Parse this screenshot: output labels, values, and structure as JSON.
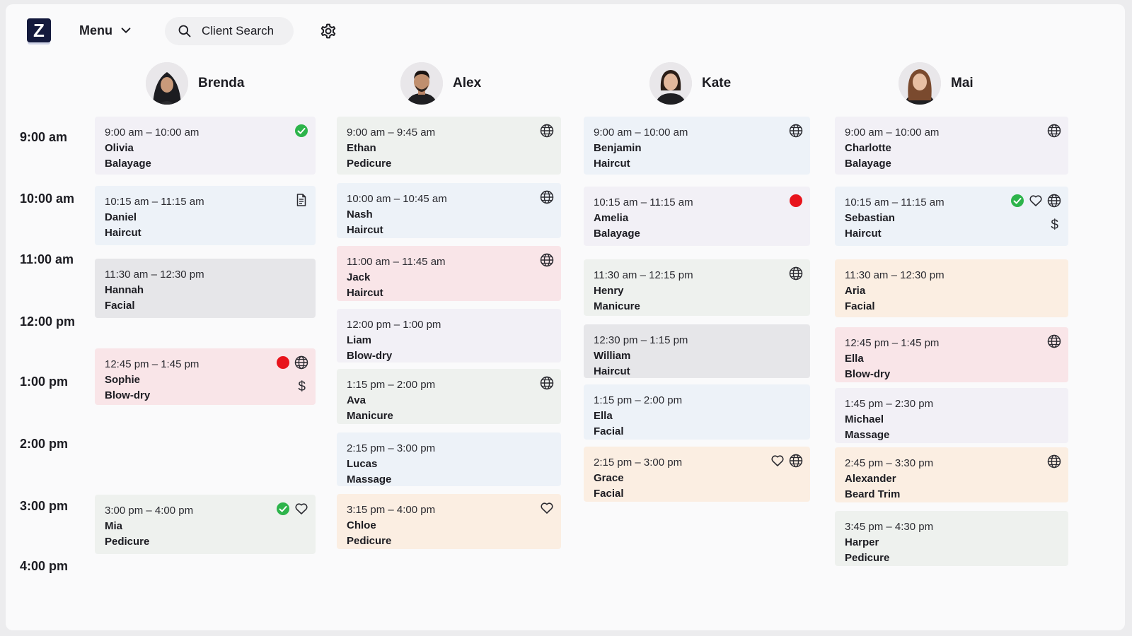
{
  "app": {
    "logo_letter": "Z"
  },
  "toolbar": {
    "menu_label": "Menu",
    "search_placeholder": "Client Search"
  },
  "icons": {
    "menu_chevron": "chevron-down-icon",
    "search": "search-icon",
    "settings": "gear-icon",
    "confirmed": "check-circle-icon",
    "online": "globe-icon",
    "notes": "document-icon",
    "alert": "red-dot-icon",
    "favorite": "heart-icon",
    "paid": "dollar-icon"
  },
  "colors": {
    "confirmed_green": "#2db44b",
    "alert_red": "#e8141c",
    "logo_navy": "#141a3d"
  },
  "times": [
    "9:00 am",
    "10:00 am",
    "11:00 am",
    "12:00 pm",
    "1:00 pm",
    "2:00 pm",
    "3:00 pm",
    "4:00 pm"
  ],
  "staff": [
    {
      "name": "Brenda",
      "appointments": [
        {
          "time": "9:00 am – 10:00 am",
          "client": "Olivia",
          "service": "Balayage"
        },
        {
          "time": "10:15 am – 11:15 am",
          "client": "Daniel",
          "service": "Haircut"
        },
        {
          "time": "11:30 am – 12:30 pm",
          "client": "Hannah",
          "service": "Facial"
        },
        {
          "time": "12:45 pm – 1:45 pm",
          "client": "Sophie",
          "service": "Blow-dry",
          "dollar": "$"
        },
        {
          "time": "3:00 pm – 4:00 pm",
          "client": "Mia",
          "service": "Pedicure"
        }
      ]
    },
    {
      "name": "Alex",
      "appointments": [
        {
          "time": "9:00 am – 9:45 am",
          "client": "Ethan",
          "service": "Pedicure"
        },
        {
          "time": "10:00 am – 10:45 am",
          "client": "Nash",
          "service": "Haircut"
        },
        {
          "time": "11:00 am – 11:45 am",
          "client": "Jack",
          "service": "Haircut"
        },
        {
          "time": "12:00 pm – 1:00 pm",
          "client": "Liam",
          "service": "Blow-dry"
        },
        {
          "time": "1:15 pm – 2:00 pm",
          "client": "Ava",
          "service": "Manicure"
        },
        {
          "time": "2:15 pm – 3:00 pm",
          "client": "Lucas",
          "service": "Massage"
        },
        {
          "time": "3:15 pm – 4:00 pm",
          "client": "Chloe",
          "service": "Pedicure"
        }
      ]
    },
    {
      "name": "Kate",
      "appointments": [
        {
          "time": "9:00 am – 10:00 am",
          "client": "Benjamin",
          "service": "Haircut"
        },
        {
          "time": "10:15 am – 11:15 am",
          "client": "Amelia",
          "service": "Balayage"
        },
        {
          "time": "11:30 am – 12:15 pm",
          "client": "Henry",
          "service": "Manicure"
        },
        {
          "time": "12:30 pm – 1:15 pm",
          "client": "William",
          "service": "Haircut"
        },
        {
          "time": "1:15 pm – 2:00 pm",
          "client": "Ella",
          "service": "Facial"
        },
        {
          "time": "2:15 pm – 3:00 pm",
          "client": "Grace",
          "service": "Facial"
        }
      ]
    },
    {
      "name": "Mai",
      "appointments": [
        {
          "time": "9:00 am – 10:00 am",
          "client": "Charlotte",
          "service": "Balayage"
        },
        {
          "time": "10:15 am – 11:15 am",
          "client": "Sebastian",
          "service": "Haircut",
          "dollar": "$"
        },
        {
          "time": "11:30 am – 12:30 pm",
          "client": "Aria",
          "service": "Facial"
        },
        {
          "time": "12:45 pm – 1:45 pm",
          "client": "Ella",
          "service": "Blow-dry"
        },
        {
          "time": "1:45 pm – 2:30 pm",
          "client": "Michael",
          "service": "Massage"
        },
        {
          "time": "2:45 pm – 3:30 pm",
          "client": "Alexander",
          "service": "Beard Trim"
        },
        {
          "time": "3:45 pm – 4:30 pm",
          "client": "Harper",
          "service": "Pedicure"
        }
      ]
    }
  ]
}
